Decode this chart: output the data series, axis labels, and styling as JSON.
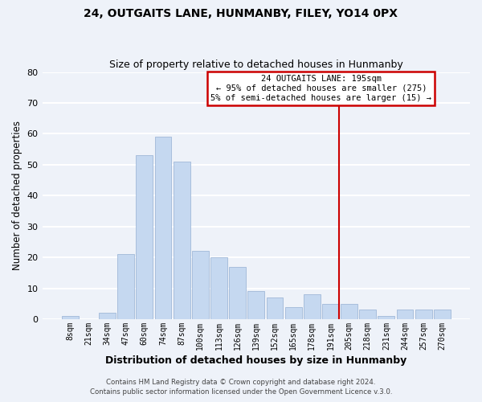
{
  "title1": "24, OUTGAITS LANE, HUNMANBY, FILEY, YO14 0PX",
  "title2": "Size of property relative to detached houses in Hunmanby",
  "xlabel": "Distribution of detached houses by size in Hunmanby",
  "ylabel": "Number of detached properties",
  "bin_labels": [
    "8sqm",
    "21sqm",
    "34sqm",
    "47sqm",
    "60sqm",
    "74sqm",
    "87sqm",
    "100sqm",
    "113sqm",
    "126sqm",
    "139sqm",
    "152sqm",
    "165sqm",
    "178sqm",
    "191sqm",
    "205sqm",
    "218sqm",
    "231sqm",
    "244sqm",
    "257sqm",
    "270sqm"
  ],
  "bar_heights": [
    1,
    0,
    2,
    21,
    53,
    59,
    51,
    22,
    20,
    17,
    9,
    7,
    4,
    8,
    5,
    5,
    3,
    1,
    3,
    3,
    3
  ],
  "bar_color": "#c5d8f0",
  "bar_edge_color": "#a0b8d8",
  "vline_x_index": 14,
  "vline_color": "#cc0000",
  "annotation_title": "24 OUTGAITS LANE: 195sqm",
  "annotation_line1": "← 95% of detached houses are smaller (275)",
  "annotation_line2": "5% of semi-detached houses are larger (15) →",
  "annotation_box_color": "#cc0000",
  "ylim": [
    0,
    80
  ],
  "yticks": [
    0,
    10,
    20,
    30,
    40,
    50,
    60,
    70,
    80
  ],
  "footer1": "Contains HM Land Registry data © Crown copyright and database right 2024.",
  "footer2": "Contains public sector information licensed under the Open Government Licence v.3.0.",
  "bg_color": "#eef2f9",
  "grid_color": "#ffffff"
}
